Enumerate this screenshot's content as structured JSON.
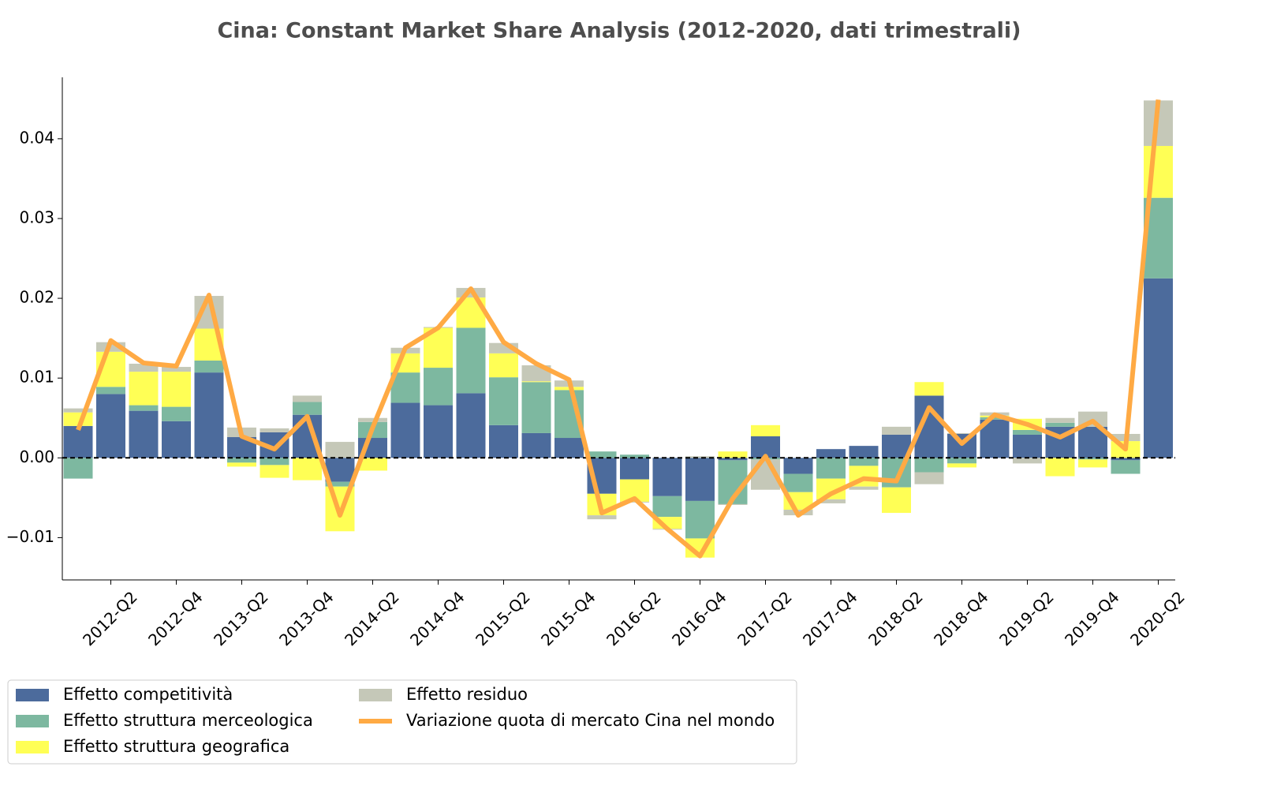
{
  "chart_data": {
    "type": "bar",
    "stacked": true,
    "title": "Cina: Constant Market Share Analysis (2012-2020, dati trimestrali)",
    "categories": [
      null,
      "2012-Q2",
      null,
      "2012-Q4",
      null,
      "2013-Q2",
      null,
      "2013-Q4",
      null,
      "2014-Q2",
      null,
      "2014-Q4",
      null,
      "2015-Q2",
      null,
      "2015-Q4",
      null,
      "2016-Q2",
      null,
      "2016-Q4",
      null,
      "2017-Q2",
      null,
      "2017-Q4",
      null,
      "2018-Q2",
      null,
      "2018-Q4",
      null,
      "2019-Q2",
      null,
      "2019-Q4",
      null,
      "2020-Q2"
    ],
    "series": [
      {
        "name": "Effetto competitività",
        "color": "#4c6b9c",
        "values": [
          0.004,
          0.008,
          0.0059,
          0.0046,
          0.0107,
          0.0026,
          0.0032,
          0.0054,
          -0.003,
          0.0025,
          0.0069,
          0.0066,
          0.0081,
          0.0041,
          0.0031,
          0.0025,
          -0.0045,
          -0.0027,
          -0.0048,
          -0.0054,
          -0.0003,
          0.0027,
          -0.002,
          0.0011,
          0.0015,
          0.0029,
          0.0078,
          0.003,
          0.0048,
          0.0029,
          0.0039,
          0.0039,
          -0.0003,
          0.0225
        ]
      },
      {
        "name": "Effetto struttura merceologica",
        "color": "#7db8a0",
        "values": [
          -0.0026,
          0.0009,
          0.0007,
          0.0018,
          0.0015,
          -0.0006,
          -0.0009,
          0.0016,
          -0.0006,
          0.002,
          0.0038,
          0.0047,
          0.0082,
          0.006,
          0.0064,
          0.006,
          0.0008,
          0.0004,
          -0.0026,
          -0.0047,
          -0.0055,
          -0.0002,
          -0.0023,
          -0.0026,
          -0.001,
          -0.0037,
          -0.0018,
          -0.0007,
          0.0003,
          0.0006,
          0.0005,
          -0.0002,
          -0.0017,
          0.0101
        ]
      },
      {
        "name": "Effetto struttura geografica",
        "color": "#ffff55",
        "values": [
          0.0017,
          0.0044,
          0.0042,
          0.0044,
          0.004,
          -0.0005,
          -0.0016,
          -0.0028,
          -0.0056,
          -0.0016,
          0.0024,
          0.005,
          0.0038,
          0.003,
          0.0001,
          0.0004,
          -0.0027,
          -0.0028,
          -0.0015,
          -0.0024,
          0.0008,
          0.0014,
          -0.0022,
          -0.0026,
          -0.0026,
          -0.0032,
          0.0017,
          -0.0005,
          0.0002,
          0.0014,
          -0.0023,
          -0.001,
          0.0021,
          0.0065
        ]
      },
      {
        "name": "Effetto residuo",
        "color": "#c5c8b8",
        "values": [
          0.0005,
          0.0012,
          0.001,
          0.0006,
          0.0041,
          0.0012,
          0.0005,
          0.0008,
          0.002,
          0.0005,
          0.0007,
          0.0001,
          0.0012,
          0.0013,
          0.002,
          0.0008,
          -0.0005,
          -0.0001,
          -0.0001,
          0.0002,
          -0.0001,
          -0.0038,
          -0.0007,
          -0.0005,
          -0.0004,
          0.001,
          -0.0015,
          0.0001,
          0.0004,
          -0.0007,
          0.0006,
          0.0019,
          0.0009,
          0.0057
        ]
      },
      {
        "name": "Variazione quota di mercato Cina nel mondo",
        "color": "#ffaa44",
        "type": "line",
        "values": [
          0.0035,
          0.0147,
          0.0119,
          0.0115,
          0.0204,
          0.0027,
          0.0011,
          0.0052,
          -0.0072,
          0.0038,
          0.0138,
          0.0163,
          0.0212,
          0.0145,
          0.0118,
          0.0098,
          -0.0069,
          -0.0051,
          -0.0089,
          -0.0123,
          -0.0051,
          0.0002,
          -0.0072,
          -0.0045,
          -0.0026,
          -0.0029,
          0.0063,
          0.0018,
          0.0054,
          0.0042,
          0.0026,
          0.0046,
          0.0011,
          0.0449
        ]
      }
    ],
    "ylim": [
      -0.0153,
      0.0477
    ],
    "yticks": [
      {
        "value": -0.01,
        "label": "−0.01"
      },
      {
        "value": 0,
        "label": "0.00"
      },
      0.01,
      0.02,
      0.03,
      0.04
    ],
    "legend": "lower left"
  }
}
